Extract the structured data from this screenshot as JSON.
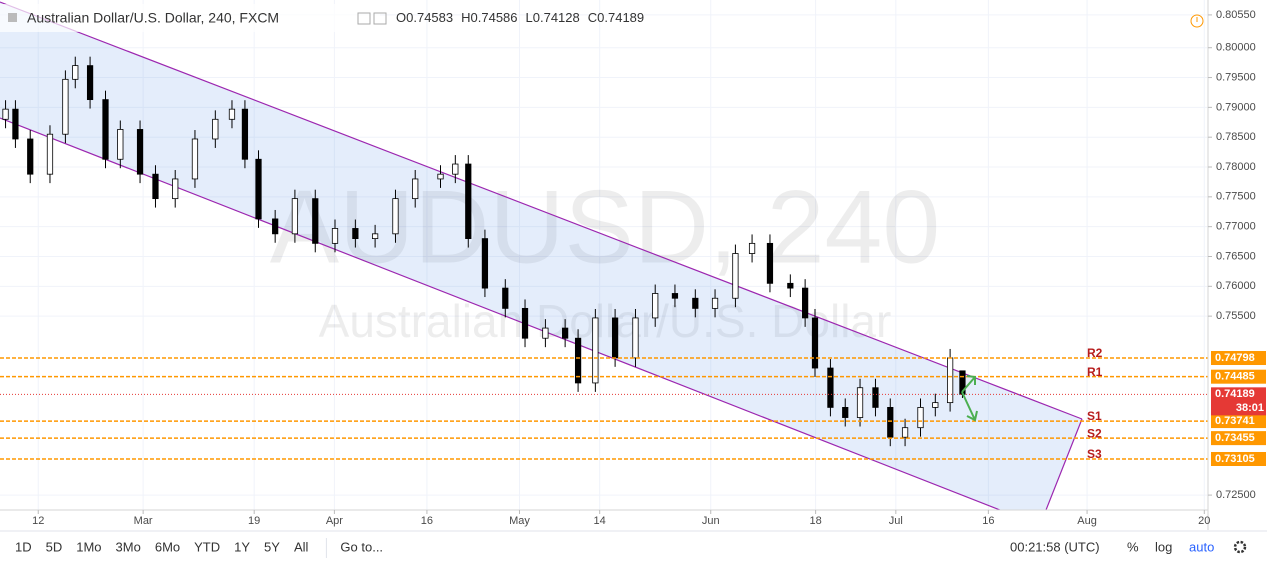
{
  "chart_data": {
    "type": "candlestick",
    "title": "Australian Dollar/U.S. Dollar, 240, FXCM",
    "ohlc_labels": [
      "O",
      "H",
      "L",
      "C"
    ],
    "watermark": [
      "AUDUSD, 240",
      "Australian Dollar/U.S. Dollar"
    ],
    "x": [
      -5.3,
      -3.7,
      -1.3,
      1.9,
      4.4,
      6.0,
      8.4,
      10.9,
      13.3,
      16.5,
      19.0,
      22.2,
      25.4,
      28.7,
      31.4,
      33.5,
      35.7,
      38.4,
      41.6,
      44.9,
      48.1,
      51.4,
      54.6,
      57.9,
      61.1,
      65.2,
      67.6,
      69.7,
      72.4,
      75.7,
      78.9,
      82.2,
      85.4,
      87.5,
      90.3,
      93.5,
      96.8,
      100.0,
      103.2,
      106.5,
      109.7,
      113.0,
      115.7,
      118.6,
      121.9,
      124.3,
      125.9,
      128.4,
      130.8,
      133.2,
      135.7,
      138.1,
      140.5,
      143.0,
      145.4,
      147.8,
      149.8
    ],
    "open": [
      0.788,
      0.7897,
      0.7847,
      0.7788,
      0.7855,
      0.7947,
      0.797,
      0.7913,
      0.7813,
      0.7863,
      0.7788,
      0.7747,
      0.778,
      0.7847,
      0.788,
      0.7897,
      0.7813,
      0.7713,
      0.7688,
      0.7747,
      0.7672,
      0.7697,
      0.768,
      0.7688,
      0.7747,
      0.778,
      0.7788,
      0.7805,
      0.768,
      0.7597,
      0.7563,
      0.7513,
      0.753,
      0.7513,
      0.7438,
      0.7547,
      0.748,
      0.7547,
      0.7588,
      0.758,
      0.7563,
      0.758,
      0.7655,
      0.7672,
      0.7605,
      0.7597,
      0.7547,
      0.7463,
      0.7397,
      0.738,
      0.743,
      0.7397,
      0.7347,
      0.7363,
      0.7397,
      0.7405,
      0.74583
    ],
    "high": [
      0.7912,
      0.7912,
      0.7862,
      0.787,
      0.7962,
      0.7985,
      0.7985,
      0.7928,
      0.7878,
      0.7878,
      0.7803,
      0.7795,
      0.7862,
      0.7895,
      0.7912,
      0.7912,
      0.7828,
      0.7728,
      0.7762,
      0.7762,
      0.7712,
      0.7712,
      0.7703,
      0.7762,
      0.7795,
      0.7803,
      0.782,
      0.782,
      0.7695,
      0.7612,
      0.7578,
      0.7545,
      0.7545,
      0.7528,
      0.7562,
      0.7562,
      0.7562,
      0.7603,
      0.7603,
      0.7595,
      0.7595,
      0.767,
      0.7687,
      0.7687,
      0.762,
      0.7612,
      0.7562,
      0.7478,
      0.7412,
      0.7445,
      0.7445,
      0.7412,
      0.7378,
      0.7412,
      0.742,
      0.7495,
      0.74586
    ],
    "low": [
      0.7865,
      0.7832,
      0.7773,
      0.7773,
      0.784,
      0.7932,
      0.7898,
      0.7798,
      0.7798,
      0.7773,
      0.7732,
      0.7732,
      0.7765,
      0.7832,
      0.7865,
      0.7798,
      0.7698,
      0.7673,
      0.7673,
      0.7657,
      0.7657,
      0.7665,
      0.7665,
      0.7673,
      0.7732,
      0.7765,
      0.7773,
      0.7665,
      0.7582,
      0.7548,
      0.7498,
      0.7498,
      0.7498,
      0.7423,
      0.7423,
      0.7465,
      0.7465,
      0.7532,
      0.7565,
      0.7548,
      0.7548,
      0.7565,
      0.764,
      0.759,
      0.7582,
      0.7532,
      0.7448,
      0.7382,
      0.7365,
      0.7365,
      0.7382,
      0.7332,
      0.7332,
      0.7348,
      0.7382,
      0.739,
      0.74128
    ],
    "close": [
      0.7897,
      0.7847,
      0.7788,
      0.7855,
      0.7947,
      0.797,
      0.7913,
      0.7813,
      0.7863,
      0.7788,
      0.7747,
      0.778,
      0.7847,
      0.788,
      0.7897,
      0.7813,
      0.7713,
      0.7688,
      0.7747,
      0.7672,
      0.7697,
      0.768,
      0.7688,
      0.7747,
      0.778,
      0.7788,
      0.7805,
      0.768,
      0.7597,
      0.7563,
      0.7513,
      0.753,
      0.7513,
      0.7438,
      0.7547,
      0.748,
      0.7547,
      0.7588,
      0.758,
      0.7563,
      0.758,
      0.7655,
      0.7672,
      0.7605,
      0.7597,
      0.7547,
      0.7463,
      0.7397,
      0.738,
      0.743,
      0.7397,
      0.7347,
      0.7363,
      0.7397,
      0.7405,
      0.748,
      0.74189
    ],
    "up_color": "#ffffff",
    "down_color": "#000000",
    "levels": [
      {
        "name": "R2",
        "value": 0.74798
      },
      {
        "name": "R1",
        "value": 0.74485
      },
      {
        "name": "S1",
        "value": 0.73741
      },
      {
        "name": "S2",
        "value": 0.73455
      },
      {
        "name": "S3",
        "value": 0.73105
      }
    ],
    "level_color": "#ff9800",
    "last_color": "#e53935",
    "countdown": "38:01",
    "xlim": [
      -6.2,
      189.6
    ],
    "xticks": [
      {
        "value": 0,
        "label": "12"
      },
      {
        "value": 17,
        "label": "Mar"
      },
      {
        "value": 35,
        "label": "19"
      },
      {
        "value": 48,
        "label": "Apr"
      },
      {
        "value": 63,
        "label": "16"
      },
      {
        "value": 78,
        "label": "May"
      },
      {
        "value": 91,
        "label": "14"
      },
      {
        "value": 109,
        "label": "Jun"
      },
      {
        "value": 126,
        "label": "18"
      },
      {
        "value": 139,
        "label": "Jul"
      },
      {
        "value": 154,
        "label": "16"
      },
      {
        "value": 170,
        "label": "Aug"
      },
      {
        "value": 189,
        "label": "20"
      }
    ],
    "ylim": [
      0.7225,
      0.808
    ],
    "yticks": [
      {
        "value": 0.8055,
        "label": "0.80550"
      },
      {
        "value": 0.8,
        "label": "0.80000"
      },
      {
        "value": 0.795,
        "label": "0.79500"
      },
      {
        "value": 0.79,
        "label": "0.79000"
      },
      {
        "value": 0.785,
        "label": "0.78500"
      },
      {
        "value": 0.78,
        "label": "0.78000"
      },
      {
        "value": 0.775,
        "label": "0.77500"
      },
      {
        "value": 0.77,
        "label": "0.77000"
      },
      {
        "value": 0.765,
        "label": "0.76500"
      },
      {
        "value": 0.76,
        "label": "0.76000"
      },
      {
        "value": 0.755,
        "label": "0.75500"
      },
      {
        "value": 0.725,
        "label": "0.72500"
      }
    ],
    "grid": true
  },
  "toolbar": {
    "ranges": [
      "1D",
      "5D",
      "1Mo",
      "3Mo",
      "6Mo",
      "YTD",
      "1Y",
      "5Y",
      "All"
    ],
    "goto": "Go to...",
    "clock": "00:21:58 (UTC)",
    "scale_buttons": [
      "%",
      "log",
      "auto"
    ]
  }
}
